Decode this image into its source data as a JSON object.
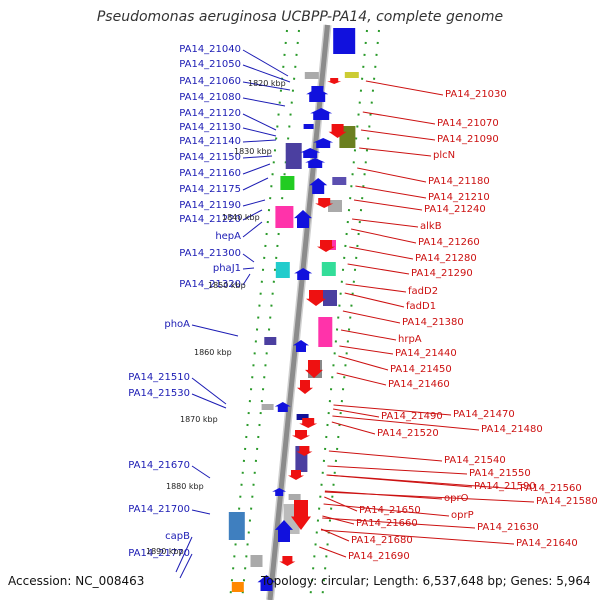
{
  "title": "Pseudomonas aeruginosa UCBPP-PA14, complete genome",
  "footer": {
    "accession": "Accession: NC_008463",
    "summary": "Topology: circular; Length: 6,537,648 bp; Genes: 5,964"
  },
  "colors": {
    "left": "#1c1cb4",
    "right": "#cc1111",
    "backbone": "#8c8c8c"
  },
  "left_labels": [
    "PA14_21040",
    "PA14_21050",
    "PA14_21060",
    "PA14_21080",
    "PA14_21120",
    "PA14_21130",
    "PA14_21140",
    "PA14_21150",
    "PA14_21160",
    "PA14_21175",
    "PA14_21190",
    "PA14_21220",
    "hepA",
    "PA14_21300",
    "phaJ1",
    "PA14_21320",
    "phoA",
    "PA14_21510",
    "PA14_21530",
    "PA14_21670",
    "PA14_21700",
    "capB",
    "PA14_21770"
  ],
  "right_labels": [
    "PA14_21030",
    "PA14_21070",
    "PA14_21090",
    "plcN",
    "PA14_21180",
    "PA14_21210",
    "PA14_21240",
    "alkB",
    "PA14_21260",
    "PA14_21280",
    "PA14_21290",
    "fadD2",
    "fadD1",
    "PA14_21380",
    "hrpA",
    "PA14_21440",
    "PA14_21450",
    "PA14_21460",
    "PA14_21470",
    "PA14_21490",
    "PA14_21480",
    "PA14_21520",
    "PA14_21540",
    "PA14_21550",
    "PA14_21560",
    "PA14_21590",
    "PA14_21580",
    "oprO",
    "PA14_21650",
    "oprP",
    "PA14_21630",
    "PA14_21660",
    "PA14_21640",
    "PA14_21680",
    "PA14_21690"
  ],
  "kbp_labels": [
    "1820 kbp",
    "1830 kbp",
    "1840 kbp",
    "1850 kbp",
    "1860 kbp",
    "1870 kbp",
    "1880 kbp",
    "1890 kbp"
  ]
}
